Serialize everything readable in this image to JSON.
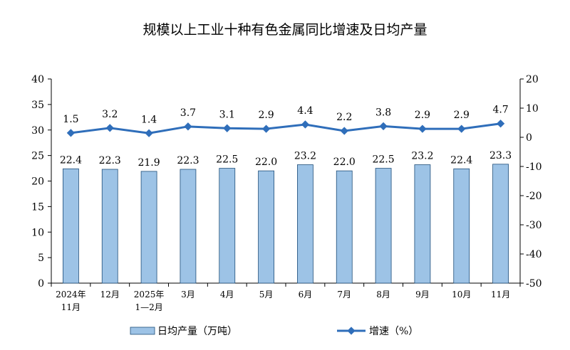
{
  "chart_data": {
    "type": "bar",
    "title": "规模以上工业十种有色金属同比增速及日均产量",
    "categories": [
      [
        "2024年",
        "11月"
      ],
      [
        "12月"
      ],
      [
        "2025年",
        "1—2月"
      ],
      [
        "3月"
      ],
      [
        "4月"
      ],
      [
        "5月"
      ],
      [
        "6月"
      ],
      [
        "7月"
      ],
      [
        "8月"
      ],
      [
        "9月"
      ],
      [
        "10月"
      ],
      [
        "11月"
      ]
    ],
    "series": [
      {
        "name": "日均产量（万吨）",
        "type": "bar",
        "axis": "left",
        "color": "#9DC3E6",
        "values": [
          22.4,
          22.3,
          21.9,
          22.3,
          22.5,
          22.0,
          23.2,
          22.0,
          22.5,
          23.2,
          22.4,
          23.3
        ],
        "labels": [
          "22.4",
          "22.3",
          "21.9",
          "22.3",
          "22.5",
          "22.0",
          "23.2",
          "22.0",
          "22.5",
          "23.2",
          "22.4",
          "23.3"
        ]
      },
      {
        "name": "增速（%）",
        "type": "line",
        "axis": "right",
        "color": "#2F6EBA",
        "values": [
          1.5,
          3.2,
          1.4,
          3.7,
          3.1,
          2.9,
          4.4,
          2.2,
          3.8,
          2.9,
          2.9,
          4.7
        ],
        "labels": [
          "1.5",
          "3.2",
          "1.4",
          "3.7",
          "3.1",
          "2.9",
          "4.4",
          "2.2",
          "3.8",
          "2.9",
          "2.9",
          "4.7"
        ]
      }
    ],
    "left_axis": {
      "range": [
        0,
        40
      ],
      "ticks": [
        "0",
        "5",
        "10",
        "15",
        "20",
        "25",
        "30",
        "35",
        "40"
      ]
    },
    "right_axis": {
      "range": [
        -50,
        20
      ],
      "ticks": [
        "-50",
        "-40",
        "-30",
        "-20",
        "-10",
        "0",
        "10",
        "20"
      ]
    },
    "grid": false,
    "legend": "bottom"
  }
}
